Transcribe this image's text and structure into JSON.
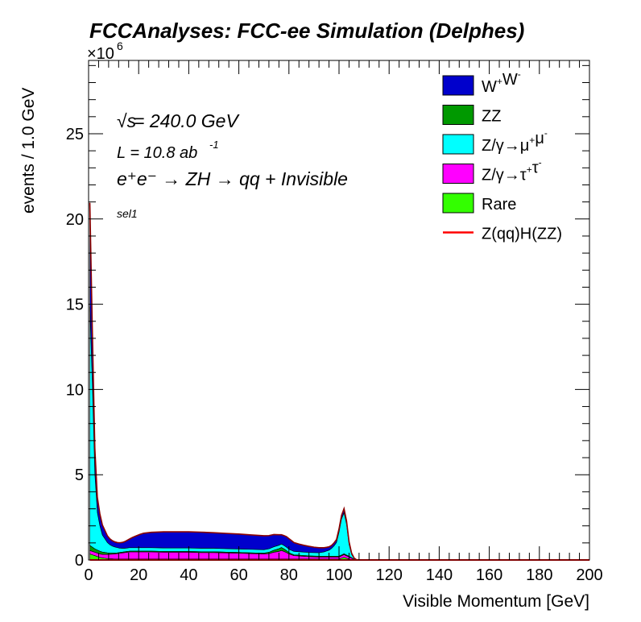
{
  "header": {
    "title": "FCCAnalyses: FCC-ee Simulation (Delphes)"
  },
  "annotations": {
    "energy_sqrt": "√s",
    "energy_rest": " = 240.0 GeV",
    "lumi_text": "L = 10.8 ab",
    "lumi_exp": "-1",
    "process_text": "e⁺e⁻ → ZH → qq + Invisible",
    "selection": "sel1"
  },
  "chart_data": {
    "type": "area",
    "title": "FCCAnalyses: FCC-ee Simulation (Delphes)",
    "xlabel": "Visible Momentum [GeV]",
    "ylabel": "events / 1.0 GeV",
    "y_multiplier_label": "×10",
    "y_multiplier_exp": "6",
    "xlim": [
      0,
      200
    ],
    "ylim": [
      0,
      29.3
    ],
    "y_unit_scale": 1000000,
    "x_ticks": [
      0,
      20,
      40,
      60,
      80,
      100,
      120,
      140,
      160,
      180,
      200
    ],
    "y_ticks": [
      0,
      5,
      10,
      15,
      20,
      25
    ],
    "stacked": true,
    "legend_position": "top-right",
    "x": [
      0.5,
      1.5,
      2.5,
      3.5,
      4.5,
      5.5,
      6.5,
      7.5,
      8.5,
      9.5,
      10.5,
      11.5,
      12.5,
      13.5,
      14.5,
      15.5,
      16.5,
      17.5,
      18.5,
      19.5,
      20.5,
      22,
      25,
      30,
      35,
      40,
      45,
      50,
      55,
      60,
      65,
      70,
      72,
      74,
      76,
      77,
      78,
      79,
      80,
      81,
      82,
      84,
      86,
      88,
      90,
      92,
      94,
      95,
      96,
      97,
      98,
      99,
      100,
      101,
      102,
      103,
      104,
      105,
      106,
      107,
      108,
      109,
      110,
      115,
      120,
      200
    ],
    "series": [
      {
        "name": "Rare",
        "color": "#33ff00",
        "values": [
          0.35,
          0.3,
          0.25,
          0.2,
          0.15,
          0.12,
          0.1,
          0.08,
          0.07,
          0.06,
          0.05,
          0.05,
          0.05,
          0.05,
          0.05,
          0.05,
          0.05,
          0.05,
          0.05,
          0.05,
          0.05,
          0.05,
          0.05,
          0.05,
          0.05,
          0.05,
          0.05,
          0.05,
          0.05,
          0.05,
          0.05,
          0.05,
          0.05,
          0.05,
          0.05,
          0.05,
          0.05,
          0.05,
          0.05,
          0.05,
          0.05,
          0.05,
          0.05,
          0.05,
          0.05,
          0.05,
          0.05,
          0.05,
          0.05,
          0.05,
          0.05,
          0.05,
          0.05,
          0.1,
          0.15,
          0.1,
          0.05,
          0.02,
          0,
          0,
          0,
          0,
          0,
          0,
          0,
          0
        ]
      },
      {
        "name": "Z/γ→τ⁺τ⁻",
        "color": "#ff00ff",
        "values": [
          0.2,
          0.2,
          0.2,
          0.2,
          0.2,
          0.2,
          0.22,
          0.24,
          0.26,
          0.28,
          0.3,
          0.32,
          0.34,
          0.36,
          0.38,
          0.4,
          0.42,
          0.42,
          0.42,
          0.42,
          0.42,
          0.42,
          0.42,
          0.4,
          0.4,
          0.4,
          0.38,
          0.38,
          0.36,
          0.34,
          0.32,
          0.3,
          0.32,
          0.4,
          0.45,
          0.5,
          0.45,
          0.38,
          0.3,
          0.25,
          0.2,
          0.18,
          0.16,
          0.14,
          0.13,
          0.12,
          0.12,
          0.12,
          0.12,
          0.12,
          0.12,
          0.12,
          0.12,
          0.14,
          0.16,
          0.14,
          0.12,
          0.08,
          0.03,
          0,
          0,
          0,
          0,
          0,
          0,
          0
        ]
      },
      {
        "name": "ZZ",
        "color": "#009900",
        "values": [
          0.3,
          0.25,
          0.2,
          0.18,
          0.16,
          0.14,
          0.12,
          0.1,
          0.08,
          0.07,
          0.06,
          0.05,
          0.05,
          0.05,
          0.05,
          0.05,
          0.05,
          0.05,
          0.05,
          0.05,
          0.05,
          0.05,
          0.05,
          0.05,
          0.05,
          0.05,
          0.05,
          0.05,
          0.05,
          0.05,
          0.05,
          0.05,
          0.08,
          0.12,
          0.16,
          0.18,
          0.15,
          0.12,
          0.08,
          0.06,
          0.05,
          0.05,
          0.05,
          0.05,
          0.05,
          0.05,
          0.05,
          0.05,
          0.05,
          0.05,
          0.05,
          0.05,
          0.05,
          0.05,
          0.05,
          0.05,
          0.05,
          0.03,
          0.01,
          0,
          0,
          0,
          0,
          0,
          0,
          0
        ]
      },
      {
        "name": "Z/γ→μ⁺μ⁻",
        "color": "#00ffff",
        "values": [
          14.0,
          9.5,
          4.4,
          2.2,
          1.5,
          1.0,
          0.8,
          0.6,
          0.48,
          0.4,
          0.35,
          0.3,
          0.25,
          0.22,
          0.2,
          0.2,
          0.2,
          0.2,
          0.2,
          0.2,
          0.2,
          0.2,
          0.2,
          0.2,
          0.2,
          0.2,
          0.2,
          0.2,
          0.2,
          0.2,
          0.2,
          0.2,
          0.2,
          0.2,
          0.2,
          0.2,
          0.2,
          0.2,
          0.2,
          0.2,
          0.2,
          0.2,
          0.2,
          0.2,
          0.2,
          0.2,
          0.25,
          0.3,
          0.35,
          0.45,
          0.6,
          0.8,
          1.4,
          2.1,
          2.4,
          1.8,
          0.7,
          0.2,
          0.05,
          0,
          0,
          0,
          0,
          0,
          0,
          0
        ]
      },
      {
        "name": "W⁺W⁻",
        "color": "#0000cc",
        "values": [
          6.1,
          3.2,
          1.5,
          0.9,
          0.7,
          0.6,
          0.5,
          0.4,
          0.35,
          0.32,
          0.3,
          0.3,
          0.32,
          0.35,
          0.4,
          0.46,
          0.52,
          0.6,
          0.66,
          0.72,
          0.78,
          0.85,
          0.9,
          0.95,
          0.95,
          0.95,
          0.95,
          0.92,
          0.9,
          0.88,
          0.85,
          0.82,
          0.78,
          0.72,
          0.62,
          0.55,
          0.58,
          0.62,
          0.62,
          0.58,
          0.52,
          0.45,
          0.4,
          0.36,
          0.32,
          0.3,
          0.25,
          0.22,
          0.2,
          0.18,
          0.18,
          0.18,
          0.2,
          0.22,
          0.25,
          0.2,
          0.15,
          0.08,
          0.03,
          0.01,
          0,
          0,
          0,
          0,
          0,
          0
        ]
      }
    ],
    "signal": {
      "name": "Z(qq)H(ZZ)",
      "color": "#ff0000",
      "values": [
        0.0005,
        0.0005,
        0.0005,
        0.0005,
        0.0005,
        0.0005,
        0.0005,
        0.0005,
        0.0005,
        0.0005,
        0.0005,
        0.0005,
        0.0005,
        0.0005,
        0.0005,
        0.0005,
        0.0005,
        0.0005,
        0.0005,
        0.0005,
        0.0005,
        0.0005,
        0.0005,
        0.0005,
        0.0005,
        0.0005,
        0.0005,
        0.0005,
        0.0005,
        0.0005,
        0.0005,
        0.0005,
        0.0005,
        0.0005,
        0.0005,
        0.0005,
        0.0005,
        0.0005,
        0.0005,
        0.0005,
        0.0005,
        0.0005,
        0.0005,
        0.0005,
        0.0005,
        0.0005,
        0.0005,
        0.0005,
        0.0005,
        0.0005,
        0.0005,
        0.0005,
        0.0005,
        0.0005,
        0.0005,
        0.0005,
        0.0005,
        0.0005,
        0.0005,
        0.0005,
        0.0005,
        0.0005,
        0.0005,
        0.0005,
        0.0005,
        0.0005
      ]
    },
    "legend": [
      {
        "label": "W",
        "sup": "+",
        "label2": "W",
        "sup2": "-",
        "kind": "fill",
        "color": "#0000cc"
      },
      {
        "label": "ZZ",
        "kind": "fill",
        "color": "#009900"
      },
      {
        "label": "Z/γ→μ",
        "sup": "+",
        "label2": "μ",
        "sup2": "-",
        "kind": "fill",
        "color": "#00ffff"
      },
      {
        "label": "Z/γ→τ",
        "sup": "+",
        "label2": "τ",
        "sup2": "-",
        "kind": "fill",
        "color": "#ff00ff"
      },
      {
        "label": "Rare",
        "kind": "fill",
        "color": "#33ff00"
      },
      {
        "label": "Z(qq)H(ZZ)",
        "kind": "line",
        "color": "#ff0000"
      }
    ]
  }
}
